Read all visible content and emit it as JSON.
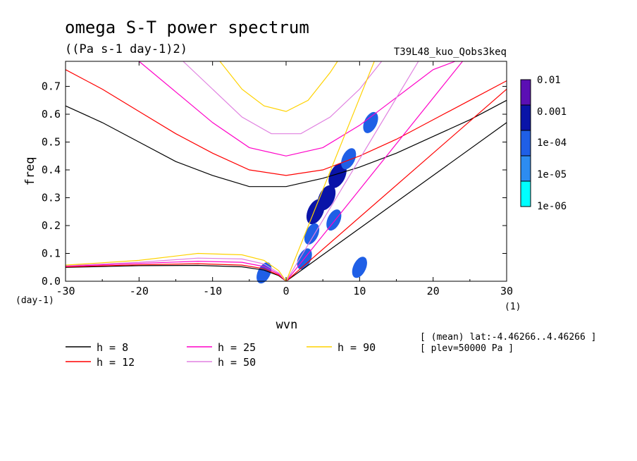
{
  "chart_data": {
    "type": "heatmap",
    "title": "omega S-T power spectrum",
    "units": "((Pa s-1 day-1)2)",
    "run_label": "T39L48_kuo_Qobs3keq",
    "xlabel": "wvn",
    "ylabel": "freq",
    "x_unit": "(1)",
    "y_unit": "(day-1)",
    "xlim": [
      -30,
      30
    ],
    "ylim": [
      0,
      0.79
    ],
    "xticks": [
      "-30",
      "-20",
      "-10",
      "0",
      "10",
      "20",
      "30"
    ],
    "yticks": [
      "0.0",
      "0.1",
      "0.2",
      "0.3",
      "0.4",
      "0.5",
      "0.6",
      "0.7"
    ],
    "colorbar": {
      "labels": [
        "0.01",
        "0.001",
        "1e-04",
        "1e-05",
        "1e-06"
      ],
      "colors": [
        "#5b0fb4",
        "#0a14a8",
        "#1f5fe6",
        "#2d8cf0",
        "#00ffff"
      ]
    },
    "power_blobs": [
      {
        "x": 4.0,
        "y": 0.25,
        "level": 3
      },
      {
        "x": 5.5,
        "y": 0.3,
        "level": 3
      },
      {
        "x": 7.0,
        "y": 0.38,
        "level": 3
      },
      {
        "x": 8.5,
        "y": 0.44,
        "level": 2
      },
      {
        "x": 11.5,
        "y": 0.57,
        "level": 2
      },
      {
        "x": 3.5,
        "y": 0.17,
        "level": 2
      },
      {
        "x": 6.5,
        "y": 0.22,
        "level": 2
      },
      {
        "x": 2.5,
        "y": 0.08,
        "level": 2
      },
      {
        "x": -3.0,
        "y": 0.03,
        "level": 2
      },
      {
        "x": 10.0,
        "y": 0.05,
        "level": 2
      }
    ],
    "series": [
      {
        "name": "h =  8",
        "color": "#000000",
        "x": [
          -30,
          -25,
          -20,
          -15,
          -10,
          -5,
          0,
          5,
          10,
          15,
          20,
          25,
          30
        ],
        "y": [
          0.63,
          0.57,
          0.5,
          0.43,
          0.38,
          0.34,
          0.34,
          0.37,
          0.41,
          0.46,
          0.52,
          0.58,
          0.65
        ]
      },
      {
        "name": "h = 12",
        "color": "#ff0000",
        "x": [
          -30,
          -25,
          -20,
          -15,
          -10,
          -5,
          0,
          5,
          10,
          15,
          20,
          25,
          30
        ],
        "y": [
          0.76,
          0.69,
          0.61,
          0.53,
          0.46,
          0.4,
          0.38,
          0.4,
          0.45,
          0.51,
          0.58,
          0.65,
          0.72
        ]
      },
      {
        "name": "h = 25",
        "color": "#ff00c8",
        "x": [
          -20,
          -15,
          -10,
          -5,
          0,
          5,
          10,
          15,
          20,
          23
        ],
        "y": [
          0.79,
          0.68,
          0.57,
          0.48,
          0.45,
          0.48,
          0.56,
          0.66,
          0.76,
          0.79
        ]
      },
      {
        "name": "h = 50",
        "color": "#e080e0",
        "x": [
          -14,
          -10,
          -6,
          -2,
          2,
          6,
          10,
          13
        ],
        "y": [
          0.79,
          0.69,
          0.59,
          0.53,
          0.53,
          0.59,
          0.69,
          0.79
        ]
      },
      {
        "name": "h = 90",
        "color": "#ffd200",
        "x": [
          -9,
          -6,
          -3,
          0,
          3,
          6,
          7
        ],
        "y": [
          0.79,
          0.69,
          0.63,
          0.61,
          0.65,
          0.75,
          0.79
        ]
      },
      {
        "name": "kelvin h = 8",
        "color": "#000000",
        "x": [
          0,
          30
        ],
        "y": [
          0,
          0.57
        ]
      },
      {
        "name": "kelvin h = 12",
        "color": "#ff0000",
        "x": [
          0,
          30
        ],
        "y": [
          0,
          0.69
        ]
      },
      {
        "name": "kelvin h = 25",
        "color": "#ff00c8",
        "x": [
          0,
          24
        ],
        "y": [
          0,
          0.79
        ]
      },
      {
        "name": "kelvin h = 50",
        "color": "#e080e0",
        "x": [
          0,
          18
        ],
        "y": [
          0,
          0.79
        ]
      },
      {
        "name": "kelvin h = 90",
        "color": "#ffd200",
        "x": [
          0,
          12
        ],
        "y": [
          0,
          0.79
        ]
      },
      {
        "name": "rossby h = 8",
        "color": "#000000",
        "x": [
          -30,
          -20,
          -12,
          -6,
          -3,
          -1,
          0
        ],
        "y": [
          0.05,
          0.056,
          0.057,
          0.052,
          0.04,
          0.02,
          0
        ]
      },
      {
        "name": "rossby h = 12",
        "color": "#ff0000",
        "x": [
          -30,
          -20,
          -12,
          -6,
          -3,
          -1,
          0
        ],
        "y": [
          0.052,
          0.059,
          0.063,
          0.058,
          0.045,
          0.022,
          0
        ]
      },
      {
        "name": "rossby h = 25",
        "color": "#ff00c8",
        "x": [
          -30,
          -20,
          -12,
          -6,
          -3,
          -1,
          0
        ],
        "y": [
          0.054,
          0.064,
          0.072,
          0.068,
          0.053,
          0.026,
          0
        ]
      },
      {
        "name": "rossby h = 50",
        "color": "#e080e0",
        "x": [
          -30,
          -20,
          -12,
          -6,
          -3,
          -1,
          0
        ],
        "y": [
          0.056,
          0.068,
          0.083,
          0.08,
          0.062,
          0.03,
          0
        ]
      },
      {
        "name": "rossby h = 90",
        "color": "#ffd200",
        "x": [
          -30,
          -20,
          -12,
          -6,
          -3,
          -1,
          0
        ],
        "y": [
          0.058,
          0.075,
          0.1,
          0.095,
          0.075,
          0.038,
          0
        ]
      }
    ],
    "legend": [
      {
        "label": "h =  8",
        "color": "#000000"
      },
      {
        "label": "h = 25",
        "color": "#ff00c8"
      },
      {
        "label": "h = 90",
        "color": "#ffd200"
      },
      {
        "label": "h = 12",
        "color": "#ff0000"
      },
      {
        "label": "h = 50",
        "color": "#e080e0"
      }
    ],
    "annotations": [
      "[ (mean) lat:-4.46266..4.46266 ]",
      "[ plev=50000 Pa ]"
    ]
  }
}
